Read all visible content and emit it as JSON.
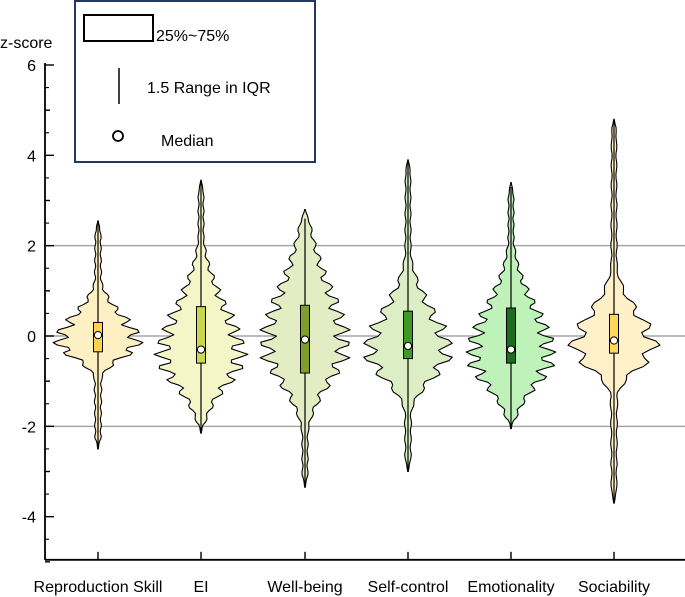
{
  "chart_data": {
    "type": "violin",
    "ylabel": "z-score",
    "ylim": [
      -5,
      6
    ],
    "yticks": [
      -4,
      -2,
      0,
      2,
      4,
      6
    ],
    "gridlines": [
      -2,
      0,
      2
    ],
    "categories": [
      "Reproduction Skill",
      "EI",
      "Well-being",
      "Self-control",
      "Emotionality",
      "Sociability"
    ],
    "series": [
      {
        "name": "Reproduction Skill",
        "q1": -0.35,
        "q3": 0.3,
        "median": 0.02,
        "whisker_low": -2.5,
        "whisker_high": 2.5,
        "min": -2.5,
        "max": 2.55,
        "fill": "#fff0c4",
        "box_color": "#ffd24a"
      },
      {
        "name": "EI",
        "q1": -0.6,
        "q3": 0.65,
        "median": -0.3,
        "whisker_low": -2.1,
        "whisker_high": 3.4,
        "min": -2.15,
        "max": 3.45,
        "fill": "#f4f6c8",
        "box_color": "#c9d850"
      },
      {
        "name": "Well-being",
        "q1": -0.82,
        "q3": 0.68,
        "median": -0.08,
        "whisker_low": -3.3,
        "whisker_high": 2.6,
        "min": -3.35,
        "max": 2.8,
        "fill": "#e4ecc4",
        "box_color": "#7f9f2a"
      },
      {
        "name": "Self-control",
        "q1": -0.5,
        "q3": 0.55,
        "median": -0.22,
        "whisker_low": -2.95,
        "whisker_high": 3.85,
        "min": -3.0,
        "max": 3.9,
        "fill": "#dcefc4",
        "box_color": "#3d9a24"
      },
      {
        "name": "Emotionality",
        "q1": -0.6,
        "q3": 0.62,
        "median": -0.3,
        "whisker_low": -2.0,
        "whisker_high": 3.3,
        "min": -2.05,
        "max": 3.4,
        "fill": "#bff2b8",
        "box_color": "#1c6e1c"
      },
      {
        "name": "Sociability",
        "q1": -0.38,
        "q3": 0.48,
        "median": -0.1,
        "whisker_low": -3.7,
        "whisker_high": 4.75,
        "min": -3.7,
        "max": 4.8,
        "fill": "#fff0c8",
        "box_color": "#ffd75a"
      }
    ],
    "legend": {
      "box_label": "25%~75%",
      "whisker_label": "1.5 Range in IQR",
      "median_label": "Median",
      "position": "top-left"
    }
  }
}
